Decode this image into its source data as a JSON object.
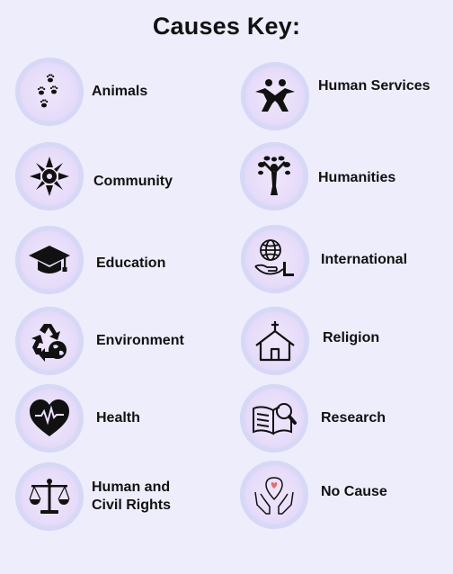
{
  "title": "Causes Key:",
  "causes": [
    {
      "label": "Animals",
      "icon": "paw-prints-icon"
    },
    {
      "label": "Human Services",
      "icon": "people-joined-icon"
    },
    {
      "label": "Community",
      "icon": "community-circle-icon"
    },
    {
      "label": "Humanities",
      "icon": "tree-person-icon"
    },
    {
      "label": "Education",
      "icon": "graduation-cap-icon"
    },
    {
      "label": "International",
      "icon": "globe-hand-icon"
    },
    {
      "label": "Environment",
      "icon": "recycle-globe-icon"
    },
    {
      "label": "Religion",
      "icon": "church-icon"
    },
    {
      "label": "Health",
      "icon": "heart-pulse-icon"
    },
    {
      "label": "Research",
      "icon": "book-magnifier-icon"
    },
    {
      "label": "Human and\nCivil Rights",
      "icon": "scales-icon"
    },
    {
      "label": "No Cause",
      "icon": "hands-pin-icon"
    }
  ],
  "colors": {
    "background": "#eeedfc",
    "badge": "#e6dcfa",
    "icon": "#111111",
    "accent": "#e07070"
  }
}
